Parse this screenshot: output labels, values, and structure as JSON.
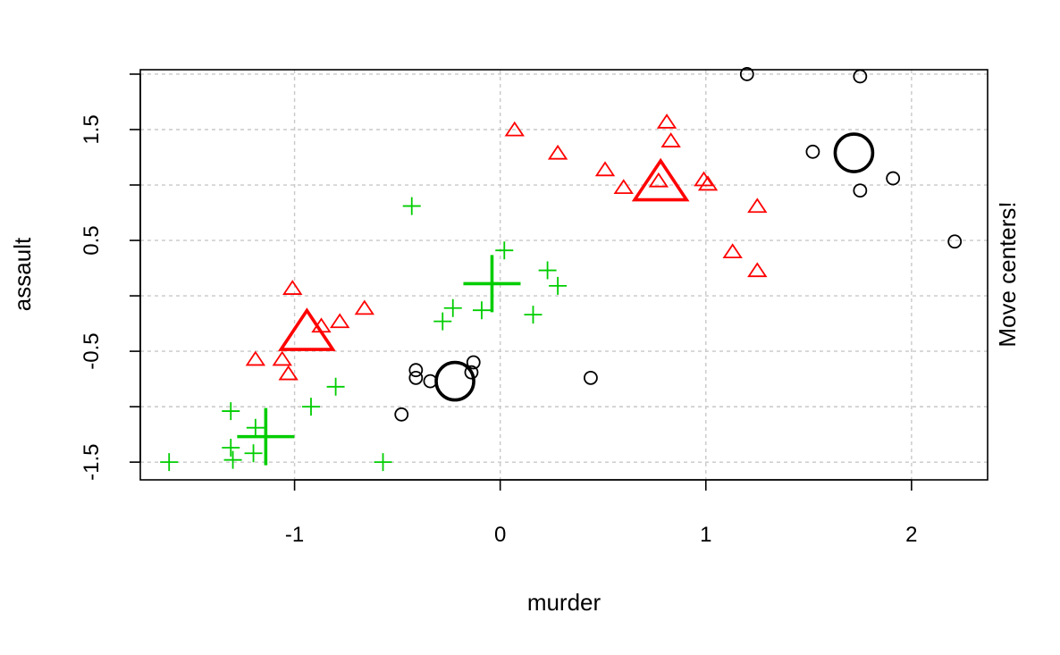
{
  "chart_data": {
    "type": "scatter",
    "title": "",
    "xlabel": "murder",
    "ylabel": "assault",
    "side_label": "Move centers!",
    "xlim": [
      -1.75,
      2.37
    ],
    "ylim": [
      -1.66,
      2.04
    ],
    "xticks": [
      -1,
      0,
      1,
      2
    ],
    "xtick_labels": [
      "-1",
      "0",
      "1",
      "2"
    ],
    "yticks": [
      -1.5,
      -1,
      -0.5,
      0,
      0.5,
      1,
      1.5,
      2
    ],
    "ytick_labels": [
      "-1.5",
      "",
      "-0.5",
      "",
      "0.5",
      "",
      "1.5",
      ""
    ],
    "grid": true,
    "series": [
      {
        "marker": "circle",
        "color": "#000000",
        "points": [
          [
            1.2,
            2.0
          ],
          [
            1.75,
            1.98
          ],
          [
            1.52,
            1.3
          ],
          [
            1.91,
            1.06
          ],
          [
            1.75,
            0.95
          ],
          [
            2.21,
            0.49
          ],
          [
            -0.13,
            -0.6
          ],
          [
            -0.41,
            -0.67
          ],
          [
            -0.41,
            -0.74
          ],
          [
            -0.34,
            -0.77
          ],
          [
            -0.14,
            -0.69
          ],
          [
            0.44,
            -0.74
          ],
          [
            -0.48,
            -1.07
          ]
        ],
        "center": [
          1.72,
          1.29
        ]
      },
      {
        "marker": "triangle",
        "color": "#ff0000",
        "points": [
          [
            0.07,
            1.49
          ],
          [
            0.81,
            1.56
          ],
          [
            0.83,
            1.39
          ],
          [
            0.28,
            1.28
          ],
          [
            0.51,
            1.13
          ],
          [
            0.6,
            0.97
          ],
          [
            0.77,
            1.03
          ],
          [
            0.99,
            1.04
          ],
          [
            1.01,
            1.0
          ],
          [
            1.25,
            0.8
          ],
          [
            1.13,
            0.39
          ],
          [
            1.25,
            0.22
          ],
          [
            -1.01,
            0.06
          ],
          [
            -0.66,
            -0.12
          ],
          [
            -0.78,
            -0.24
          ],
          [
            -0.87,
            -0.28
          ],
          [
            -1.19,
            -0.58
          ],
          [
            -1.06,
            -0.58
          ],
          [
            -1.03,
            -0.71
          ]
        ],
        "center": [
          0.78,
          1.0
        ]
      },
      {
        "marker": "plus",
        "color": "#00cd00",
        "points": [
          [
            -0.43,
            0.81
          ],
          [
            0.02,
            0.41
          ],
          [
            0.23,
            0.23
          ],
          [
            0.28,
            0.09
          ],
          [
            -0.23,
            -0.11
          ],
          [
            -0.09,
            -0.13
          ],
          [
            0.16,
            -0.17
          ],
          [
            -0.28,
            -0.23
          ],
          [
            -0.8,
            -0.82
          ],
          [
            -0.92,
            -1.0
          ],
          [
            -1.31,
            -1.04
          ],
          [
            -1.19,
            -1.19
          ],
          [
            -1.31,
            -1.37
          ],
          [
            -1.3,
            -1.48
          ],
          [
            -1.2,
            -1.42
          ],
          [
            -1.61,
            -1.5
          ],
          [
            -0.57,
            -1.5
          ]
        ],
        "center": [
          -0.04,
          0.11
        ]
      }
    ],
    "extra_centers": [
      {
        "marker": "circle",
        "color": "#000000",
        "point": [
          -0.22,
          -0.77
        ]
      },
      {
        "marker": "triangle",
        "color": "#ff0000",
        "point": [
          -0.94,
          -0.35
        ]
      },
      {
        "marker": "plus",
        "color": "#00cd00",
        "point": [
          -1.14,
          -1.27
        ]
      }
    ]
  }
}
